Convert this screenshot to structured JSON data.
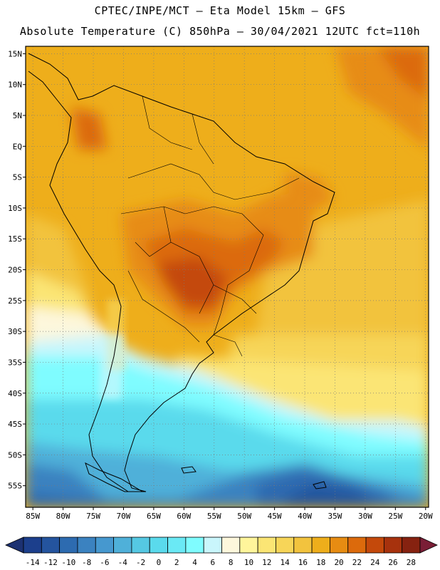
{
  "header": {
    "line1": "CPTEC/INPE/MCT –  Eta Model 15km – GFS",
    "line2": "Absolute Temperature (C) 850hPa – 30/04/2021 12UTC fct=110h"
  },
  "map": {
    "lat_ticks": [
      "15N",
      "10N",
      "5N",
      "EQ",
      "5S",
      "10S",
      "15S",
      "20S",
      "25S",
      "30S",
      "35S",
      "40S",
      "45S",
      "50S",
      "55S"
    ],
    "lon_ticks": [
      "85W",
      "80W",
      "75W",
      "70W",
      "65W",
      "60W",
      "55W",
      "50W",
      "45W",
      "40W",
      "35W",
      "30W",
      "25W",
      "20W"
    ],
    "lat_values": [
      15,
      10,
      5,
      0,
      -5,
      -10,
      -15,
      -20,
      -25,
      -30,
      -35,
      -40,
      -45,
      -50,
      -55
    ],
    "lon_values": [
      -85,
      -80,
      -75,
      -70,
      -65,
      -60,
      -55,
      -50,
      -45,
      -40,
      -35,
      -30,
      -25,
      -20
    ]
  },
  "colorbar": {
    "labels": [
      "-14",
      "-12",
      "-10",
      "-8",
      "-6",
      "-4",
      "-2",
      "0",
      "2",
      "4",
      "6",
      "8",
      "10",
      "12",
      "14",
      "16",
      "18",
      "20",
      "22",
      "24",
      "26",
      "28"
    ],
    "colors": [
      "#1c3f8c",
      "#24549e",
      "#2d6bb0",
      "#3b82c0",
      "#4698cf",
      "#4fb0d9",
      "#55c8e3",
      "#5adaec",
      "#6ae9f5",
      "#7ffcff",
      "#c9f6fc",
      "#fdf7dc",
      "#fff59b",
      "#fbe574",
      "#f7d558",
      "#f2c33e",
      "#eeae1b",
      "#e78c12",
      "#dc6a0c",
      "#c4490b",
      "#a7320d",
      "#862210"
    ],
    "under_color": "#1c3172",
    "over_color": "#7a1e36"
  }
}
